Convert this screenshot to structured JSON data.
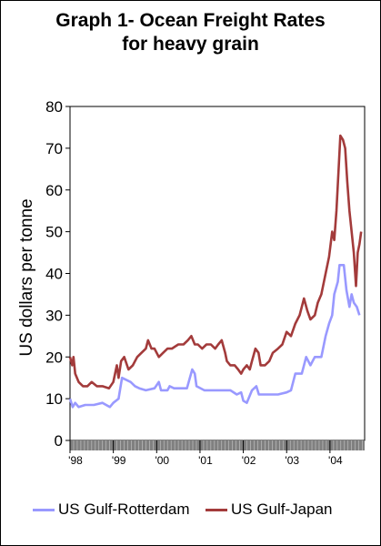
{
  "chart_data": {
    "type": "line",
    "title_lines": [
      "Graph 1- Ocean Freight Rates",
      "for heavy grain"
    ],
    "ylabel": "US dollars per tonne",
    "xlabel": "",
    "ylim": [
      0,
      80
    ],
    "y_ticks": [
      0,
      10,
      20,
      30,
      40,
      50,
      60,
      70,
      80
    ],
    "x_range": [
      1998.0,
      2004.8
    ],
    "x_ticks": [
      {
        "label": "'98",
        "year": 1998.0
      },
      {
        "label": "'99",
        "year": 1999.0
      },
      {
        "label": "'00",
        "year": 2000.0
      },
      {
        "label": "'01",
        "year": 2001.0
      },
      {
        "label": "'02",
        "year": 2002.0
      },
      {
        "label": "'03",
        "year": 2003.0
      },
      {
        "label": "'04",
        "year": 2004.0
      }
    ],
    "grid": false,
    "legend_position": "bottom",
    "series": [
      {
        "name": "US Gulf-Rotterdam",
        "color": "#9999ff",
        "points": [
          [
            1998.0,
            10
          ],
          [
            1998.06,
            8
          ],
          [
            1998.12,
            9
          ],
          [
            1998.2,
            8
          ],
          [
            1998.35,
            8.5
          ],
          [
            1998.55,
            8.5
          ],
          [
            1998.75,
            9
          ],
          [
            1998.92,
            8
          ],
          [
            1999.0,
            9
          ],
          [
            1999.12,
            10
          ],
          [
            1999.2,
            15
          ],
          [
            1999.4,
            14
          ],
          [
            1999.5,
            13
          ],
          [
            1999.6,
            12.5
          ],
          [
            1999.75,
            12
          ],
          [
            1999.95,
            12.5
          ],
          [
            2000.05,
            14
          ],
          [
            2000.1,
            12
          ],
          [
            2000.25,
            12
          ],
          [
            2000.3,
            13
          ],
          [
            2000.4,
            12.5
          ],
          [
            2000.7,
            12.5
          ],
          [
            2000.82,
            17
          ],
          [
            2000.88,
            16
          ],
          [
            2000.92,
            13
          ],
          [
            2001.1,
            12
          ],
          [
            2001.3,
            12
          ],
          [
            2001.5,
            12
          ],
          [
            2001.7,
            12
          ],
          [
            2001.85,
            11
          ],
          [
            2001.95,
            11.5
          ],
          [
            2002.0,
            9.5
          ],
          [
            2002.08,
            9
          ],
          [
            2002.12,
            10
          ],
          [
            2002.2,
            12
          ],
          [
            2002.3,
            13
          ],
          [
            2002.36,
            11
          ],
          [
            2002.6,
            11
          ],
          [
            2002.8,
            11
          ],
          [
            2003.0,
            11.5
          ],
          [
            2003.1,
            12
          ],
          [
            2003.2,
            16
          ],
          [
            2003.35,
            16
          ],
          [
            2003.45,
            20
          ],
          [
            2003.55,
            18
          ],
          [
            2003.65,
            20
          ],
          [
            2003.8,
            20
          ],
          [
            2003.9,
            25
          ],
          [
            2003.98,
            28
          ],
          [
            2004.05,
            30
          ],
          [
            2004.1,
            35
          ],
          [
            2004.18,
            38
          ],
          [
            2004.22,
            42
          ],
          [
            2004.32,
            42
          ],
          [
            2004.38,
            36
          ],
          [
            2004.45,
            32
          ],
          [
            2004.5,
            35
          ],
          [
            2004.55,
            33
          ],
          [
            2004.62,
            32
          ],
          [
            2004.68,
            30
          ]
        ]
      },
      {
        "name": "US Gulf-Japan",
        "color": "#a33b3b",
        "points": [
          [
            1998.0,
            20
          ],
          [
            1998.05,
            18
          ],
          [
            1998.08,
            20
          ],
          [
            1998.12,
            16
          ],
          [
            1998.2,
            14
          ],
          [
            1998.3,
            13
          ],
          [
            1998.4,
            13
          ],
          [
            1998.5,
            14
          ],
          [
            1998.62,
            13
          ],
          [
            1998.75,
            13
          ],
          [
            1998.9,
            12.5
          ],
          [
            1999.0,
            14
          ],
          [
            1999.08,
            18
          ],
          [
            1999.12,
            15
          ],
          [
            1999.18,
            19
          ],
          [
            1999.25,
            20
          ],
          [
            1999.35,
            17
          ],
          [
            1999.45,
            18
          ],
          [
            1999.55,
            20
          ],
          [
            1999.65,
            21
          ],
          [
            1999.75,
            22
          ],
          [
            1999.8,
            24
          ],
          [
            1999.88,
            22
          ],
          [
            1999.95,
            22
          ],
          [
            2000.05,
            20
          ],
          [
            2000.15,
            21
          ],
          [
            2000.25,
            22
          ],
          [
            2000.35,
            22
          ],
          [
            2000.5,
            23
          ],
          [
            2000.62,
            23
          ],
          [
            2000.72,
            24
          ],
          [
            2000.8,
            25
          ],
          [
            2000.88,
            23
          ],
          [
            2000.95,
            23
          ],
          [
            2001.05,
            22
          ],
          [
            2001.15,
            23
          ],
          [
            2001.25,
            23
          ],
          [
            2001.35,
            22
          ],
          [
            2001.42,
            23
          ],
          [
            2001.5,
            24
          ],
          [
            2001.58,
            21
          ],
          [
            2001.62,
            19
          ],
          [
            2001.7,
            18
          ],
          [
            2001.8,
            18
          ],
          [
            2001.88,
            17
          ],
          [
            2001.95,
            16
          ],
          [
            2002.0,
            17
          ],
          [
            2002.08,
            18
          ],
          [
            2002.15,
            17
          ],
          [
            2002.2,
            19
          ],
          [
            2002.28,
            22
          ],
          [
            2002.35,
            21
          ],
          [
            2002.4,
            18
          ],
          [
            2002.5,
            18
          ],
          [
            2002.6,
            19
          ],
          [
            2002.68,
            21
          ],
          [
            2002.8,
            22
          ],
          [
            2002.9,
            23
          ],
          [
            2003.0,
            26
          ],
          [
            2003.1,
            25
          ],
          [
            2003.2,
            28
          ],
          [
            2003.3,
            30
          ],
          [
            2003.4,
            34
          ],
          [
            2003.48,
            31
          ],
          [
            2003.55,
            29
          ],
          [
            2003.65,
            30
          ],
          [
            2003.72,
            33
          ],
          [
            2003.8,
            35
          ],
          [
            2003.9,
            40
          ],
          [
            2003.98,
            44
          ],
          [
            2004.05,
            50
          ],
          [
            2004.1,
            48
          ],
          [
            2004.15,
            55
          ],
          [
            2004.2,
            65
          ],
          [
            2004.24,
            73
          ],
          [
            2004.3,
            72
          ],
          [
            2004.35,
            70
          ],
          [
            2004.4,
            62
          ],
          [
            2004.45,
            55
          ],
          [
            2004.5,
            50
          ],
          [
            2004.55,
            45
          ],
          [
            2004.6,
            37
          ],
          [
            2004.64,
            45
          ],
          [
            2004.68,
            47
          ],
          [
            2004.72,
            50
          ]
        ]
      }
    ]
  }
}
